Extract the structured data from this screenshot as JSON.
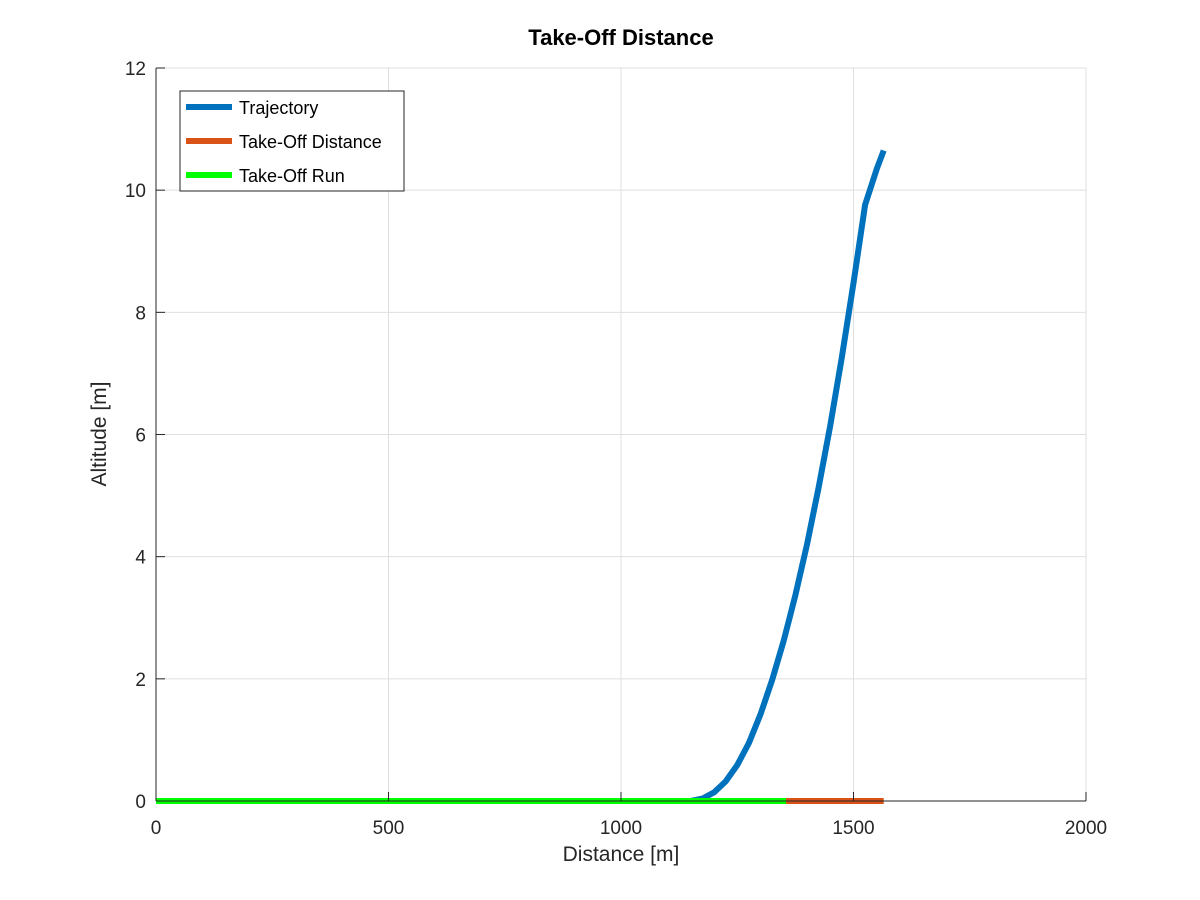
{
  "chart_data": {
    "type": "line",
    "title": "Take-Off Distance",
    "xlabel": "Distance [m]",
    "ylabel": "Altitude [m]",
    "xlim": [
      0,
      2000
    ],
    "ylim": [
      0,
      12
    ],
    "xticks": [
      0,
      500,
      1000,
      1500,
      2000
    ],
    "yticks": [
      0,
      2,
      4,
      6,
      8,
      10,
      12
    ],
    "xtick_labels": [
      "0",
      "500",
      "1000",
      "1500",
      "2000"
    ],
    "ytick_labels": [
      "0",
      "2",
      "4",
      "6",
      "8",
      "10",
      "12"
    ],
    "grid": true,
    "legend_position": "top-left",
    "series": [
      {
        "name": "Trajectory",
        "color": "#0072BD",
        "x": [
          0,
          500,
          1000,
          1150,
          1175,
          1200,
          1225,
          1250,
          1275,
          1300,
          1325,
          1350,
          1375,
          1400,
          1425,
          1450,
          1475,
          1500,
          1525,
          1550,
          1565
        ],
        "y": [
          0,
          0,
          0,
          0,
          0.04,
          0.14,
          0.32,
          0.59,
          0.95,
          1.42,
          1.98,
          2.63,
          3.37,
          4.2,
          5.13,
          6.15,
          7.27,
          8.48,
          9.76,
          10.35,
          10.65
        ]
      },
      {
        "name": "Take-Off Distance",
        "color": "#D95319",
        "x": [
          0,
          1565
        ],
        "y": [
          0,
          0
        ]
      },
      {
        "name": "Take-Off Run",
        "color": "#00FF00",
        "x": [
          0,
          1355
        ],
        "y": [
          0,
          0
        ]
      }
    ]
  }
}
